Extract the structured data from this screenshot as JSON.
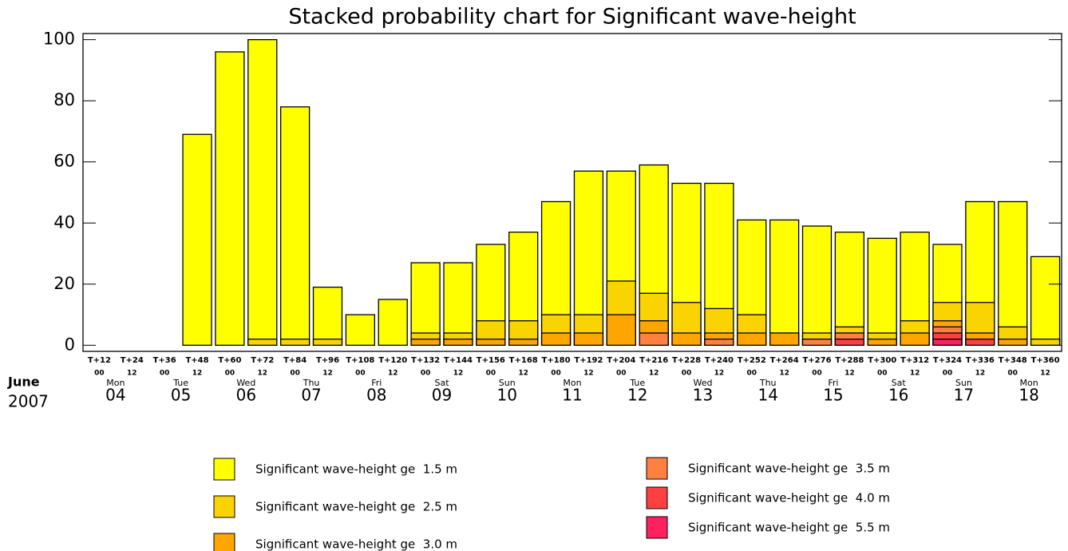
{
  "chart_data": {
    "type": "bar",
    "title": "Stacked probability chart for Significant wave-height",
    "categories": [
      "T+12",
      "T+24",
      "T+36",
      "T+48",
      "T+60",
      "T+72",
      "T+84",
      "T+96",
      "T+108",
      "T+120",
      "T+132",
      "T+144",
      "T+156",
      "T+168",
      "T+180",
      "T+192",
      "T+204",
      "T+216",
      "T+228",
      "T+240",
      "T+252",
      "T+264",
      "T+276",
      "T+288",
      "T+300",
      "T+312",
      "T+324",
      "T+336",
      "T+348",
      "T+360"
    ],
    "hours": [
      "00",
      "12",
      "00",
      "12",
      "00",
      "12",
      "00",
      "12",
      "00",
      "12",
      "00",
      "12",
      "00",
      "12",
      "00",
      "12",
      "00",
      "12",
      "00",
      "12",
      "00",
      "12",
      "00",
      "12",
      "00",
      "12",
      "00",
      "12",
      "00",
      "12"
    ],
    "month": "June",
    "year": "2007",
    "days": [
      {
        "weekday": "Mon",
        "date": "04"
      },
      {
        "weekday": "Tue",
        "date": "05"
      },
      {
        "weekday": "Wed",
        "date": "06"
      },
      {
        "weekday": "Thu",
        "date": "07"
      },
      {
        "weekday": "Fri",
        "date": "08"
      },
      {
        "weekday": "Sat",
        "date": "09"
      },
      {
        "weekday": "Sun",
        "date": "10"
      },
      {
        "weekday": "Mon",
        "date": "11"
      },
      {
        "weekday": "Tue",
        "date": "12"
      },
      {
        "weekday": "Wed",
        "date": "13"
      },
      {
        "weekday": "Thu",
        "date": "14"
      },
      {
        "weekday": "Fri",
        "date": "15"
      },
      {
        "weekday": "Sat",
        "date": "16"
      },
      {
        "weekday": "Sun",
        "date": "17"
      },
      {
        "weekday": "Mon",
        "date": "18"
      }
    ],
    "series": [
      {
        "name": "Significant wave-height ge  1.5 m",
        "color": "#ffff00",
        "values": [
          0,
          0,
          0,
          69,
          96,
          100,
          78,
          19,
          10,
          15,
          27,
          27,
          33,
          37,
          47,
          57,
          57,
          59,
          53,
          53,
          41,
          41,
          39,
          37,
          35,
          37,
          33,
          47,
          47,
          29
        ]
      },
      {
        "name": "Significant wave-height ge  2.5 m",
        "color": "#fad400",
        "values": [
          0,
          0,
          0,
          0,
          0,
          2,
          2,
          2,
          0,
          0,
          4,
          4,
          8,
          8,
          10,
          10,
          21,
          17,
          14,
          12,
          10,
          4,
          4,
          6,
          4,
          8,
          14,
          14,
          6,
          2
        ]
      },
      {
        "name": "Significant wave-height ge  3.0 m",
        "color": "#ffa500",
        "values": [
          0,
          0,
          0,
          0,
          0,
          0,
          0,
          0,
          0,
          0,
          2,
          2,
          2,
          2,
          4,
          4,
          10,
          8,
          4,
          4,
          4,
          4,
          2,
          4,
          2,
          4,
          8,
          4,
          2,
          0
        ]
      },
      {
        "name": "Significant wave-height ge  3.5 m",
        "color": "#ff8040",
        "values": [
          0,
          0,
          0,
          0,
          0,
          0,
          0,
          0,
          0,
          0,
          0,
          0,
          0,
          0,
          0,
          0,
          0,
          4,
          0,
          2,
          0,
          0,
          2,
          4,
          0,
          0,
          6,
          2,
          0,
          0
        ]
      },
      {
        "name": "Significant wave-height ge  4.0 m",
        "color": "#ff4040",
        "values": [
          0,
          0,
          0,
          0,
          0,
          0,
          0,
          0,
          0,
          0,
          0,
          0,
          0,
          0,
          0,
          0,
          0,
          0,
          0,
          0,
          0,
          0,
          0,
          2,
          0,
          0,
          4,
          2,
          0,
          0
        ]
      },
      {
        "name": "Significant wave-height ge  5.5 m",
        "color": "#ff2060",
        "values": [
          0,
          0,
          0,
          0,
          0,
          0,
          0,
          0,
          0,
          0,
          0,
          0,
          0,
          0,
          0,
          0,
          0,
          0,
          0,
          0,
          0,
          0,
          0,
          0,
          0,
          0,
          2,
          0,
          0,
          0
        ]
      }
    ],
    "ylim": [
      -2,
      102
    ],
    "yticks": [
      0,
      20,
      40,
      60,
      80,
      100
    ]
  }
}
